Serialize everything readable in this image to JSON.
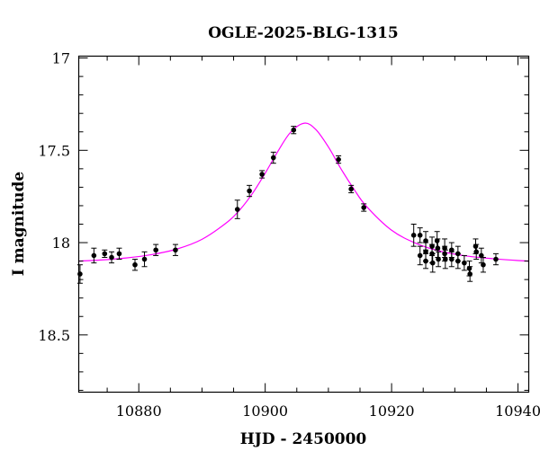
{
  "chart_data": {
    "type": "scatter",
    "title": "OGLE-2025-BLG-1315",
    "xlabel": "HJD - 2450000",
    "ylabel": "I magnitude",
    "xlim": [
      10870.5,
      10941.7
    ],
    "ylim": [
      16.99,
      18.81
    ],
    "y_inverted": true,
    "grid": false,
    "x_ticks": [
      "10880",
      "10900",
      "10920",
      "10940"
    ],
    "x_tick_values": [
      10880,
      10900,
      10920,
      10940
    ],
    "y_ticks": [
      "17",
      "17.5",
      "18",
      "18.5"
    ],
    "y_tick_values": [
      17,
      17.5,
      18,
      18.5
    ],
    "points": [
      [
        10870.7,
        18.17,
        0.05
      ],
      [
        10872.9,
        18.07,
        0.04
      ],
      [
        10874.6,
        18.06,
        0.02
      ],
      [
        10875.7,
        18.08,
        0.03
      ],
      [
        10876.9,
        18.06,
        0.03
      ],
      [
        10879.4,
        18.12,
        0.03
      ],
      [
        10880.9,
        18.09,
        0.04
      ],
      [
        10882.7,
        18.04,
        0.03
      ],
      [
        10885.8,
        18.04,
        0.03
      ],
      [
        10895.6,
        17.82,
        0.05
      ],
      [
        10897.5,
        17.72,
        0.03
      ],
      [
        10899.5,
        17.63,
        0.02
      ],
      [
        10901.3,
        17.54,
        0.03
      ],
      [
        10904.5,
        17.39,
        0.02
      ],
      [
        10911.6,
        17.55,
        0.02
      ],
      [
        10913.6,
        17.71,
        0.02
      ],
      [
        10915.6,
        17.81,
        0.02
      ],
      [
        10923.5,
        17.96,
        0.06
      ],
      [
        10924.5,
        17.96,
        0.04
      ],
      [
        10924.5,
        18.07,
        0.05
      ],
      [
        10925.4,
        17.99,
        0.05
      ],
      [
        10925.4,
        18.05,
        0.05
      ],
      [
        10925.4,
        18.1,
        0.04
      ],
      [
        10926.4,
        18.02,
        0.05
      ],
      [
        10926.4,
        18.06,
        0.05
      ],
      [
        10926.5,
        18.11,
        0.05
      ],
      [
        10927.2,
        17.99,
        0.05
      ],
      [
        10927.3,
        18.03,
        0.05
      ],
      [
        10927.4,
        18.09,
        0.04
      ],
      [
        10928.4,
        18.03,
        0.05
      ],
      [
        10928.4,
        18.06,
        0.04
      ],
      [
        10928.5,
        18.09,
        0.05
      ],
      [
        10929.5,
        18.04,
        0.04
      ],
      [
        10929.5,
        18.09,
        0.04
      ],
      [
        10930.5,
        18.06,
        0.04
      ],
      [
        10930.5,
        18.1,
        0.04
      ],
      [
        10931.5,
        18.11,
        0.04
      ],
      [
        10932.3,
        18.14,
        0.04
      ],
      [
        10932.4,
        18.17,
        0.04
      ],
      [
        10933.3,
        18.02,
        0.04
      ],
      [
        10933.4,
        18.05,
        0.04
      ],
      [
        10934.2,
        18.07,
        0.04
      ],
      [
        10934.5,
        18.12,
        0.04
      ],
      [
        10936.5,
        18.09,
        0.03
      ]
    ],
    "points_format": [
      "hjd",
      "mag",
      "err"
    ],
    "points_color": "#000000",
    "model_curve": {
      "color": "#ff00ff",
      "x": [
        10870,
        10874,
        10878,
        10882,
        10886,
        10890,
        10894,
        10896,
        10898,
        10900,
        10902,
        10904,
        10906.2,
        10908,
        10910,
        10912,
        10914,
        10916,
        10920,
        10924,
        10928,
        10932,
        10936,
        10940,
        10942
      ],
      "y": [
        18.1,
        18.094,
        18.083,
        18.065,
        18.035,
        17.982,
        17.889,
        17.822,
        17.733,
        17.624,
        17.506,
        17.403,
        17.353,
        17.387,
        17.482,
        17.601,
        17.708,
        17.803,
        17.933,
        18.006,
        18.049,
        18.073,
        18.087,
        18.097,
        18.1
      ]
    }
  }
}
